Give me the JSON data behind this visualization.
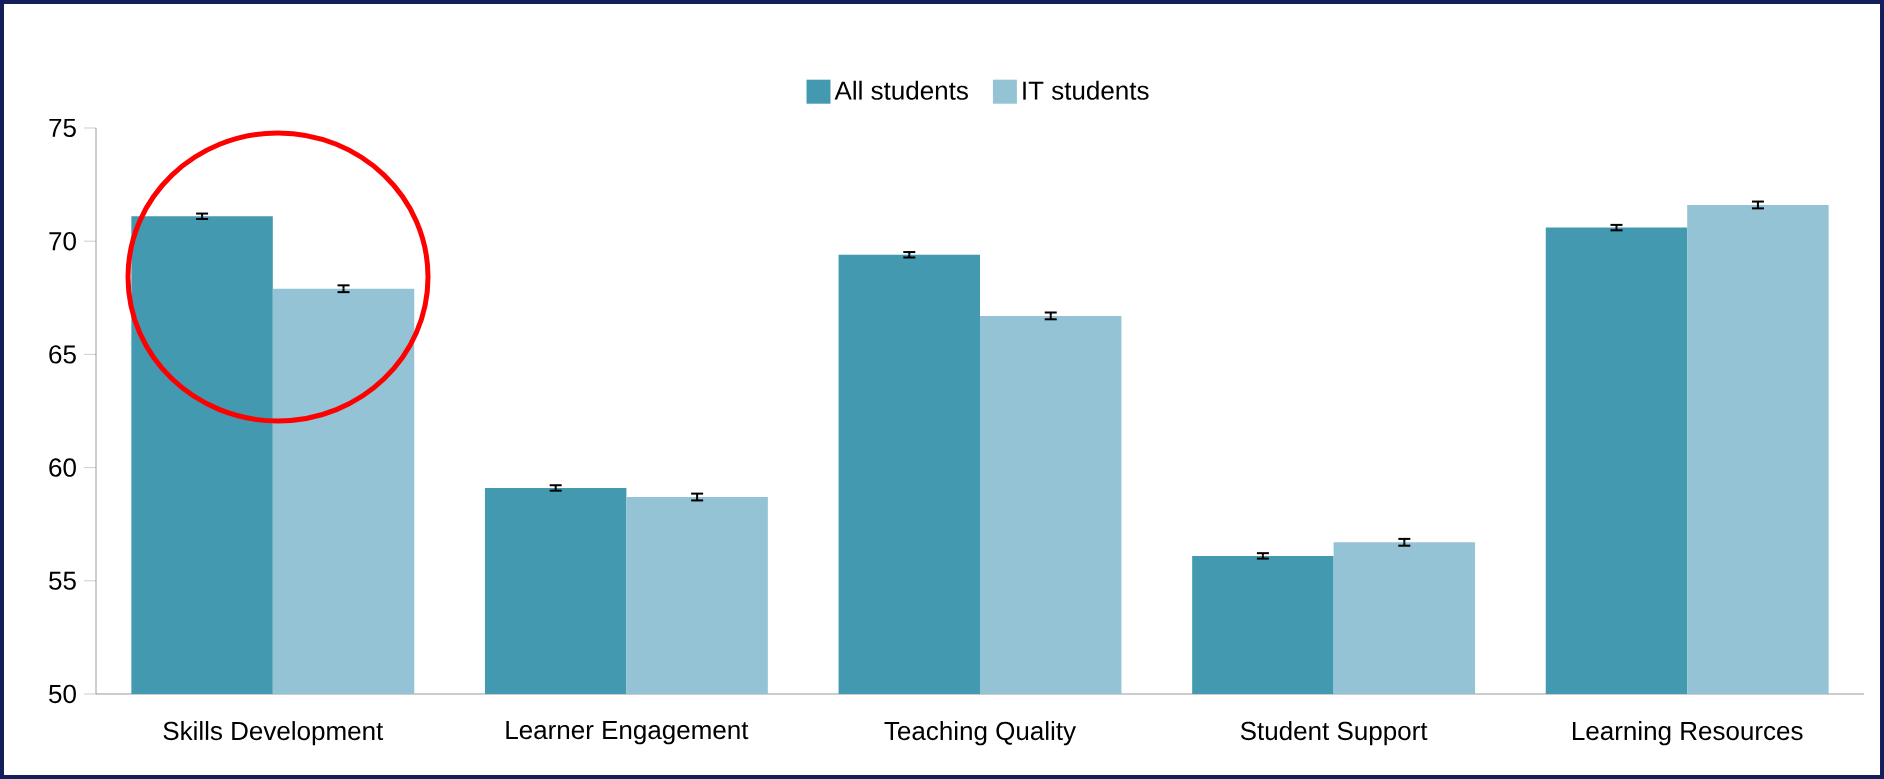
{
  "chart_data": {
    "type": "bar",
    "categories": [
      "Skills Development",
      "Learner  Engagement",
      "Teaching  Quality",
      "Student Support",
      "Learning  Resources"
    ],
    "series": [
      {
        "name": "All students",
        "color": "#4399b0",
        "values": [
          71.1,
          59.1,
          69.4,
          56.1,
          70.6
        ],
        "errors": [
          0.12,
          0.12,
          0.12,
          0.12,
          0.12
        ]
      },
      {
        "name": "IT students",
        "color": "#93c3d4",
        "values": [
          67.9,
          58.7,
          66.7,
          56.7,
          71.6
        ],
        "errors": [
          0.15,
          0.15,
          0.15,
          0.15,
          0.15
        ]
      }
    ],
    "ylim": [
      50,
      75
    ],
    "yticks": [
      50,
      55,
      60,
      65,
      70,
      75
    ],
    "grid": false,
    "legend": "top"
  }
}
